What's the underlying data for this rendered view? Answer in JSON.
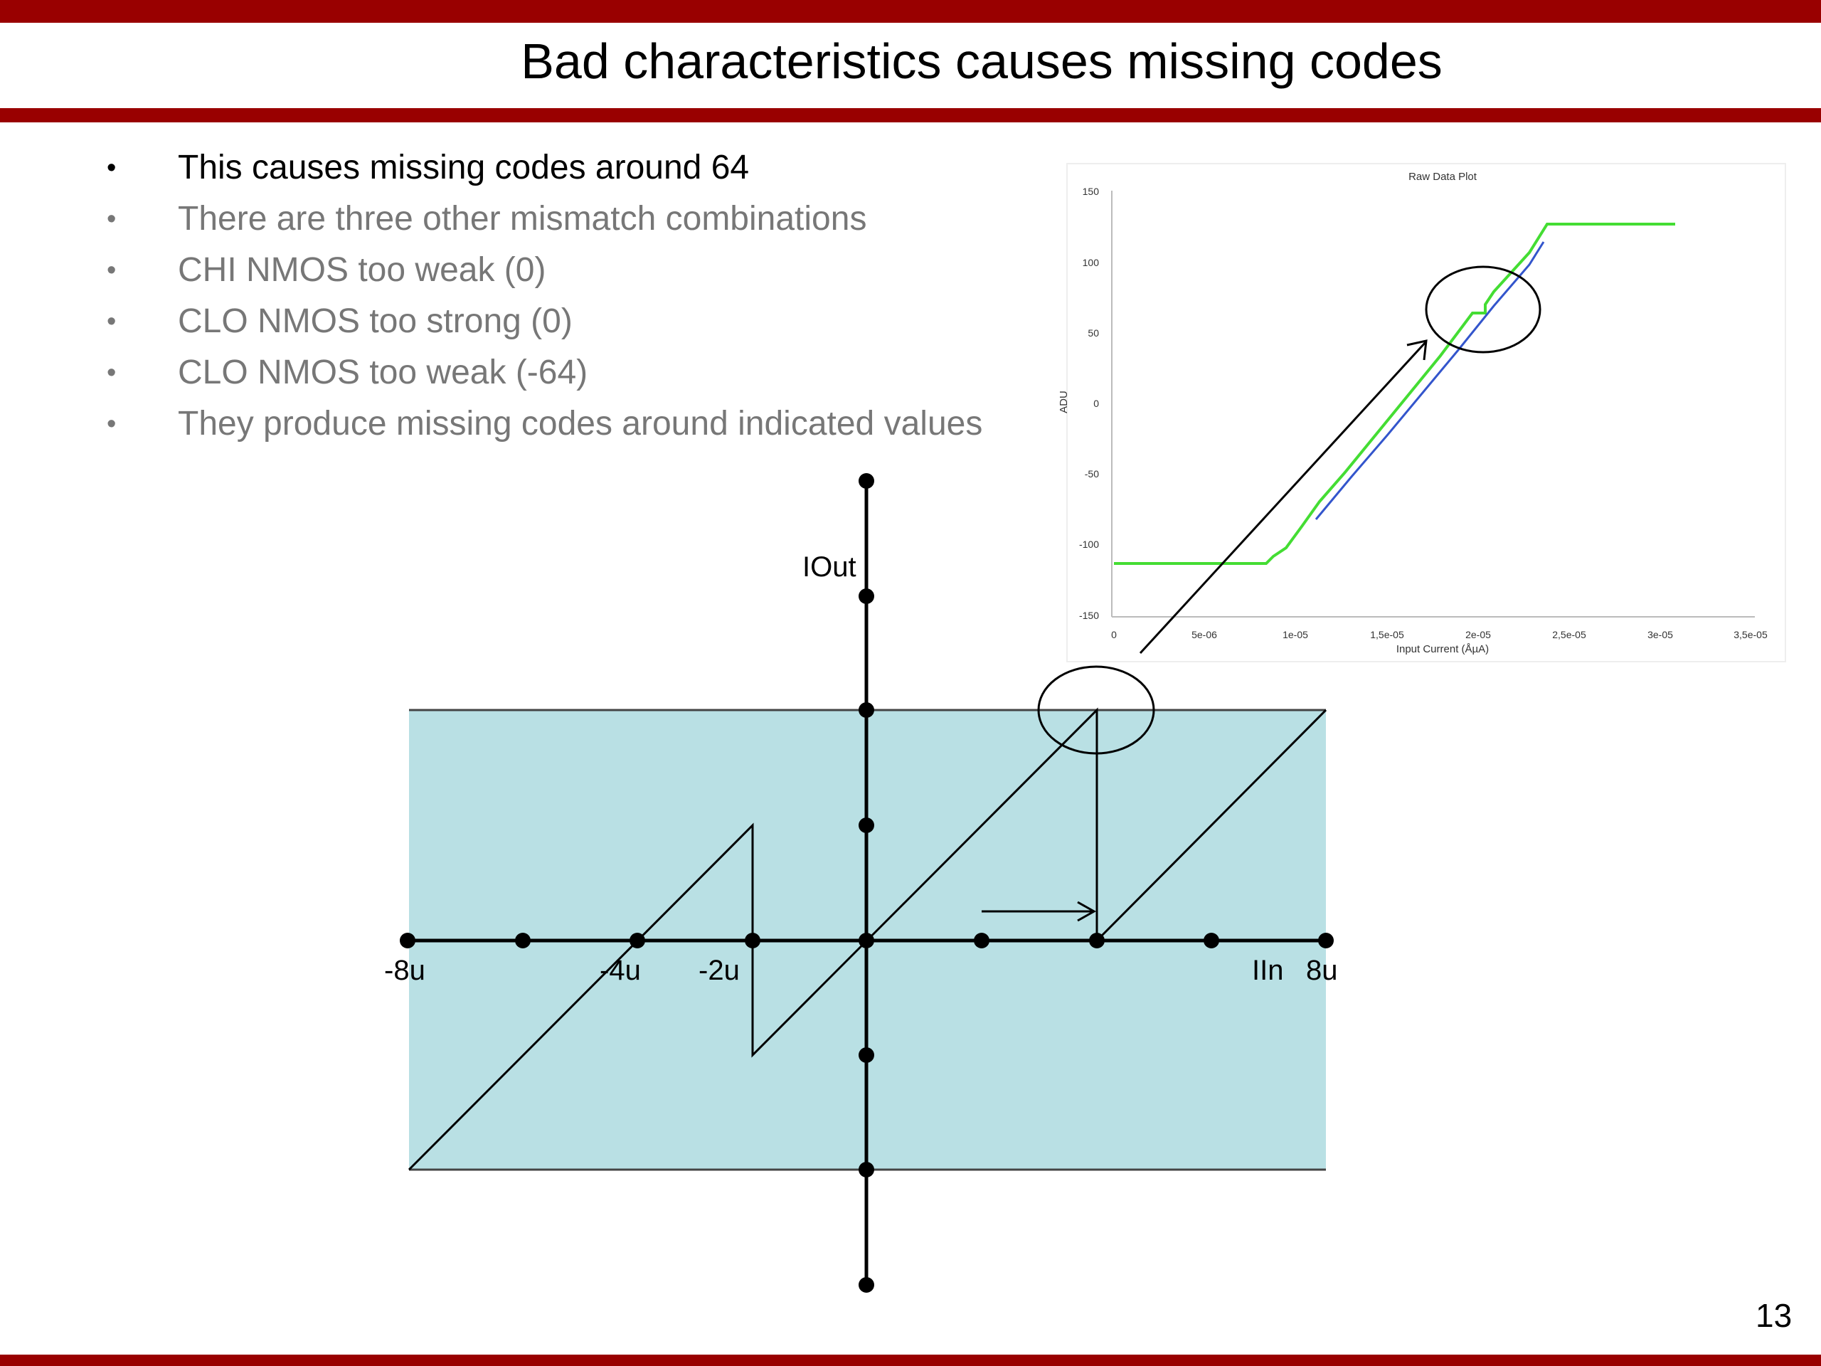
{
  "slide": {
    "title": "Bad characteristics causes missing codes",
    "page_number": "13"
  },
  "bullets": [
    {
      "text": "This causes missing codes around 64"
    },
    {
      "text": "There are three other mismatch combinations"
    },
    {
      "text": "CHI NMOS too weak (0)"
    },
    {
      "text": "CLO NMOS too strong (0)"
    },
    {
      "text": "CLO NMOS too weak (-64)"
    },
    {
      "text": "They produce missing codes around indicated values"
    }
  ],
  "diagram": {
    "y_label": "IOut",
    "x_label": "IIn",
    "x_ticks": [
      "-8u",
      "-4u",
      "-2u",
      "8u"
    ],
    "region_color": "#b9e0e4"
  },
  "raw_plot": {
    "title": "Raw Data Plot",
    "xlabel": "Input Current (ÅµA)",
    "ylabel": "ADU",
    "x_ticks": [
      "0",
      "5e-06",
      "1e-05",
      "1,5e-05",
      "2e-05",
      "2,5e-05",
      "3e-05",
      "3,5e-05"
    ],
    "y_ticks": [
      "150",
      "100",
      "50",
      "0",
      "-50",
      "-100",
      "-150"
    ],
    "colors": {
      "green": "#44dd33",
      "blue": "#3355cc"
    }
  }
}
